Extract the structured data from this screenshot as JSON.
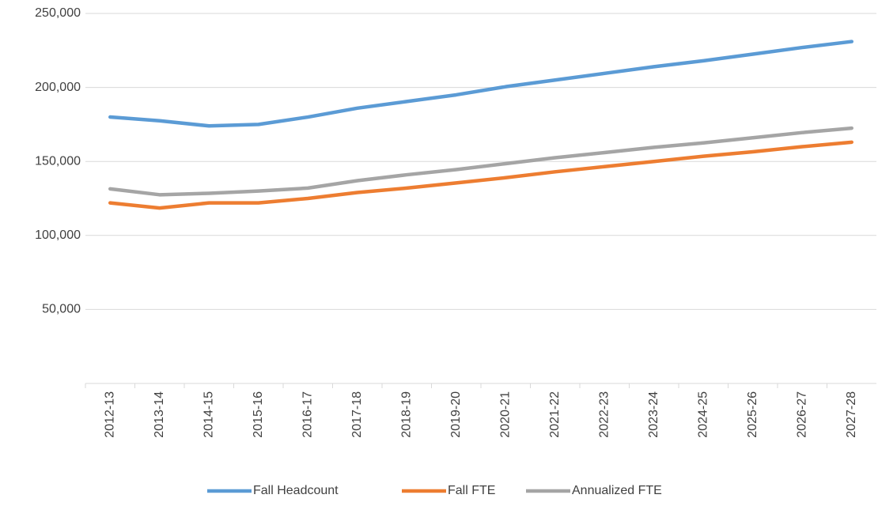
{
  "chart_data": {
    "type": "line",
    "categories": [
      "2012-13",
      "2013-14",
      "2014-15",
      "2015-16",
      "2016-17",
      "2017-18",
      "2018-19",
      "2019-20",
      "2020-21",
      "2021-22",
      "2022-23",
      "2023-24",
      "2024-25",
      "2025-26",
      "2026-27",
      "2027-28"
    ],
    "series": [
      {
        "name": "Fall Headcount",
        "color": "#5b9bd5",
        "values": [
          180000,
          177500,
          174000,
          175000,
          180000,
          186000,
          190500,
          195000,
          200500,
          205000,
          209500,
          214000,
          218000,
          222500,
          227000,
          231000
        ]
      },
      {
        "name": "Fall FTE",
        "color": "#ed7d31",
        "values": [
          122000,
          118500,
          122000,
          122000,
          125000,
          129000,
          132000,
          135500,
          139000,
          143000,
          146500,
          150000,
          153500,
          156500,
          160000,
          163000
        ]
      },
      {
        "name": "Annualized FTE",
        "color": "#a5a5a5",
        "values": [
          131500,
          127500,
          128500,
          130000,
          132000,
          137000,
          141000,
          144500,
          148500,
          152500,
          156000,
          159500,
          162500,
          166000,
          169500,
          172500
        ]
      }
    ],
    "ylim": [
      0,
      250000
    ],
    "yticks": [
      {
        "value": 50000,
        "label": "50,000"
      },
      {
        "value": 100000,
        "label": "100,000"
      },
      {
        "value": 150000,
        "label": "150,000"
      },
      {
        "value": 200000,
        "label": "200,000"
      },
      {
        "value": 250000,
        "label": "250,000"
      }
    ],
    "grid": true,
    "legend": "bottom"
  }
}
